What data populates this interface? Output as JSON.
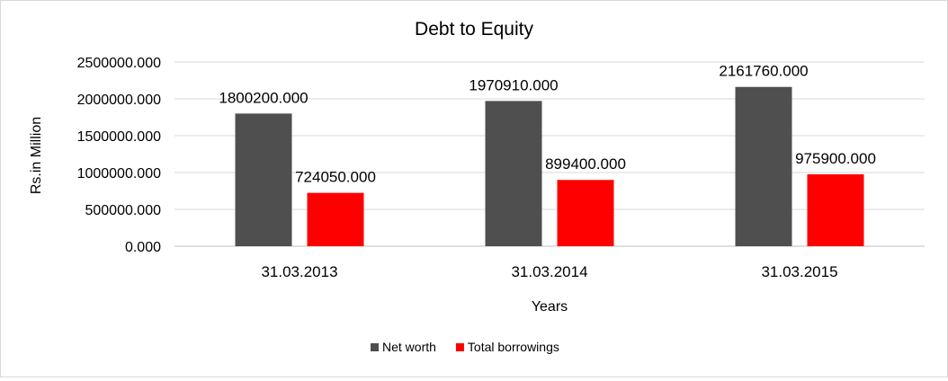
{
  "chart_data": {
    "type": "bar",
    "title": "Debt to Equity",
    "xlabel": "Years",
    "ylabel": "Rs.in Million",
    "categories": [
      "31.03.2013",
      "31.03.2014",
      "31.03.2015"
    ],
    "ylim": [
      0,
      2500000
    ],
    "y_ticks": [
      "0.000",
      "500000.000",
      "1000000.000",
      "1500000.000",
      "2000000.000",
      "2500000.000"
    ],
    "grid": true,
    "legend_position": "bottom",
    "series": [
      {
        "name": "Net worth",
        "color": "#4f4f4f",
        "values": [
          1800200,
          1970910,
          2161760
        ],
        "labels": [
          "1800200.000",
          "1970910.000",
          "2161760.000"
        ]
      },
      {
        "name": "Total borrowings",
        "color": "#ff0000",
        "values": [
          724050,
          899400,
          975900
        ],
        "labels": [
          "724050.000",
          "899400.000",
          "975900.000"
        ]
      }
    ]
  }
}
